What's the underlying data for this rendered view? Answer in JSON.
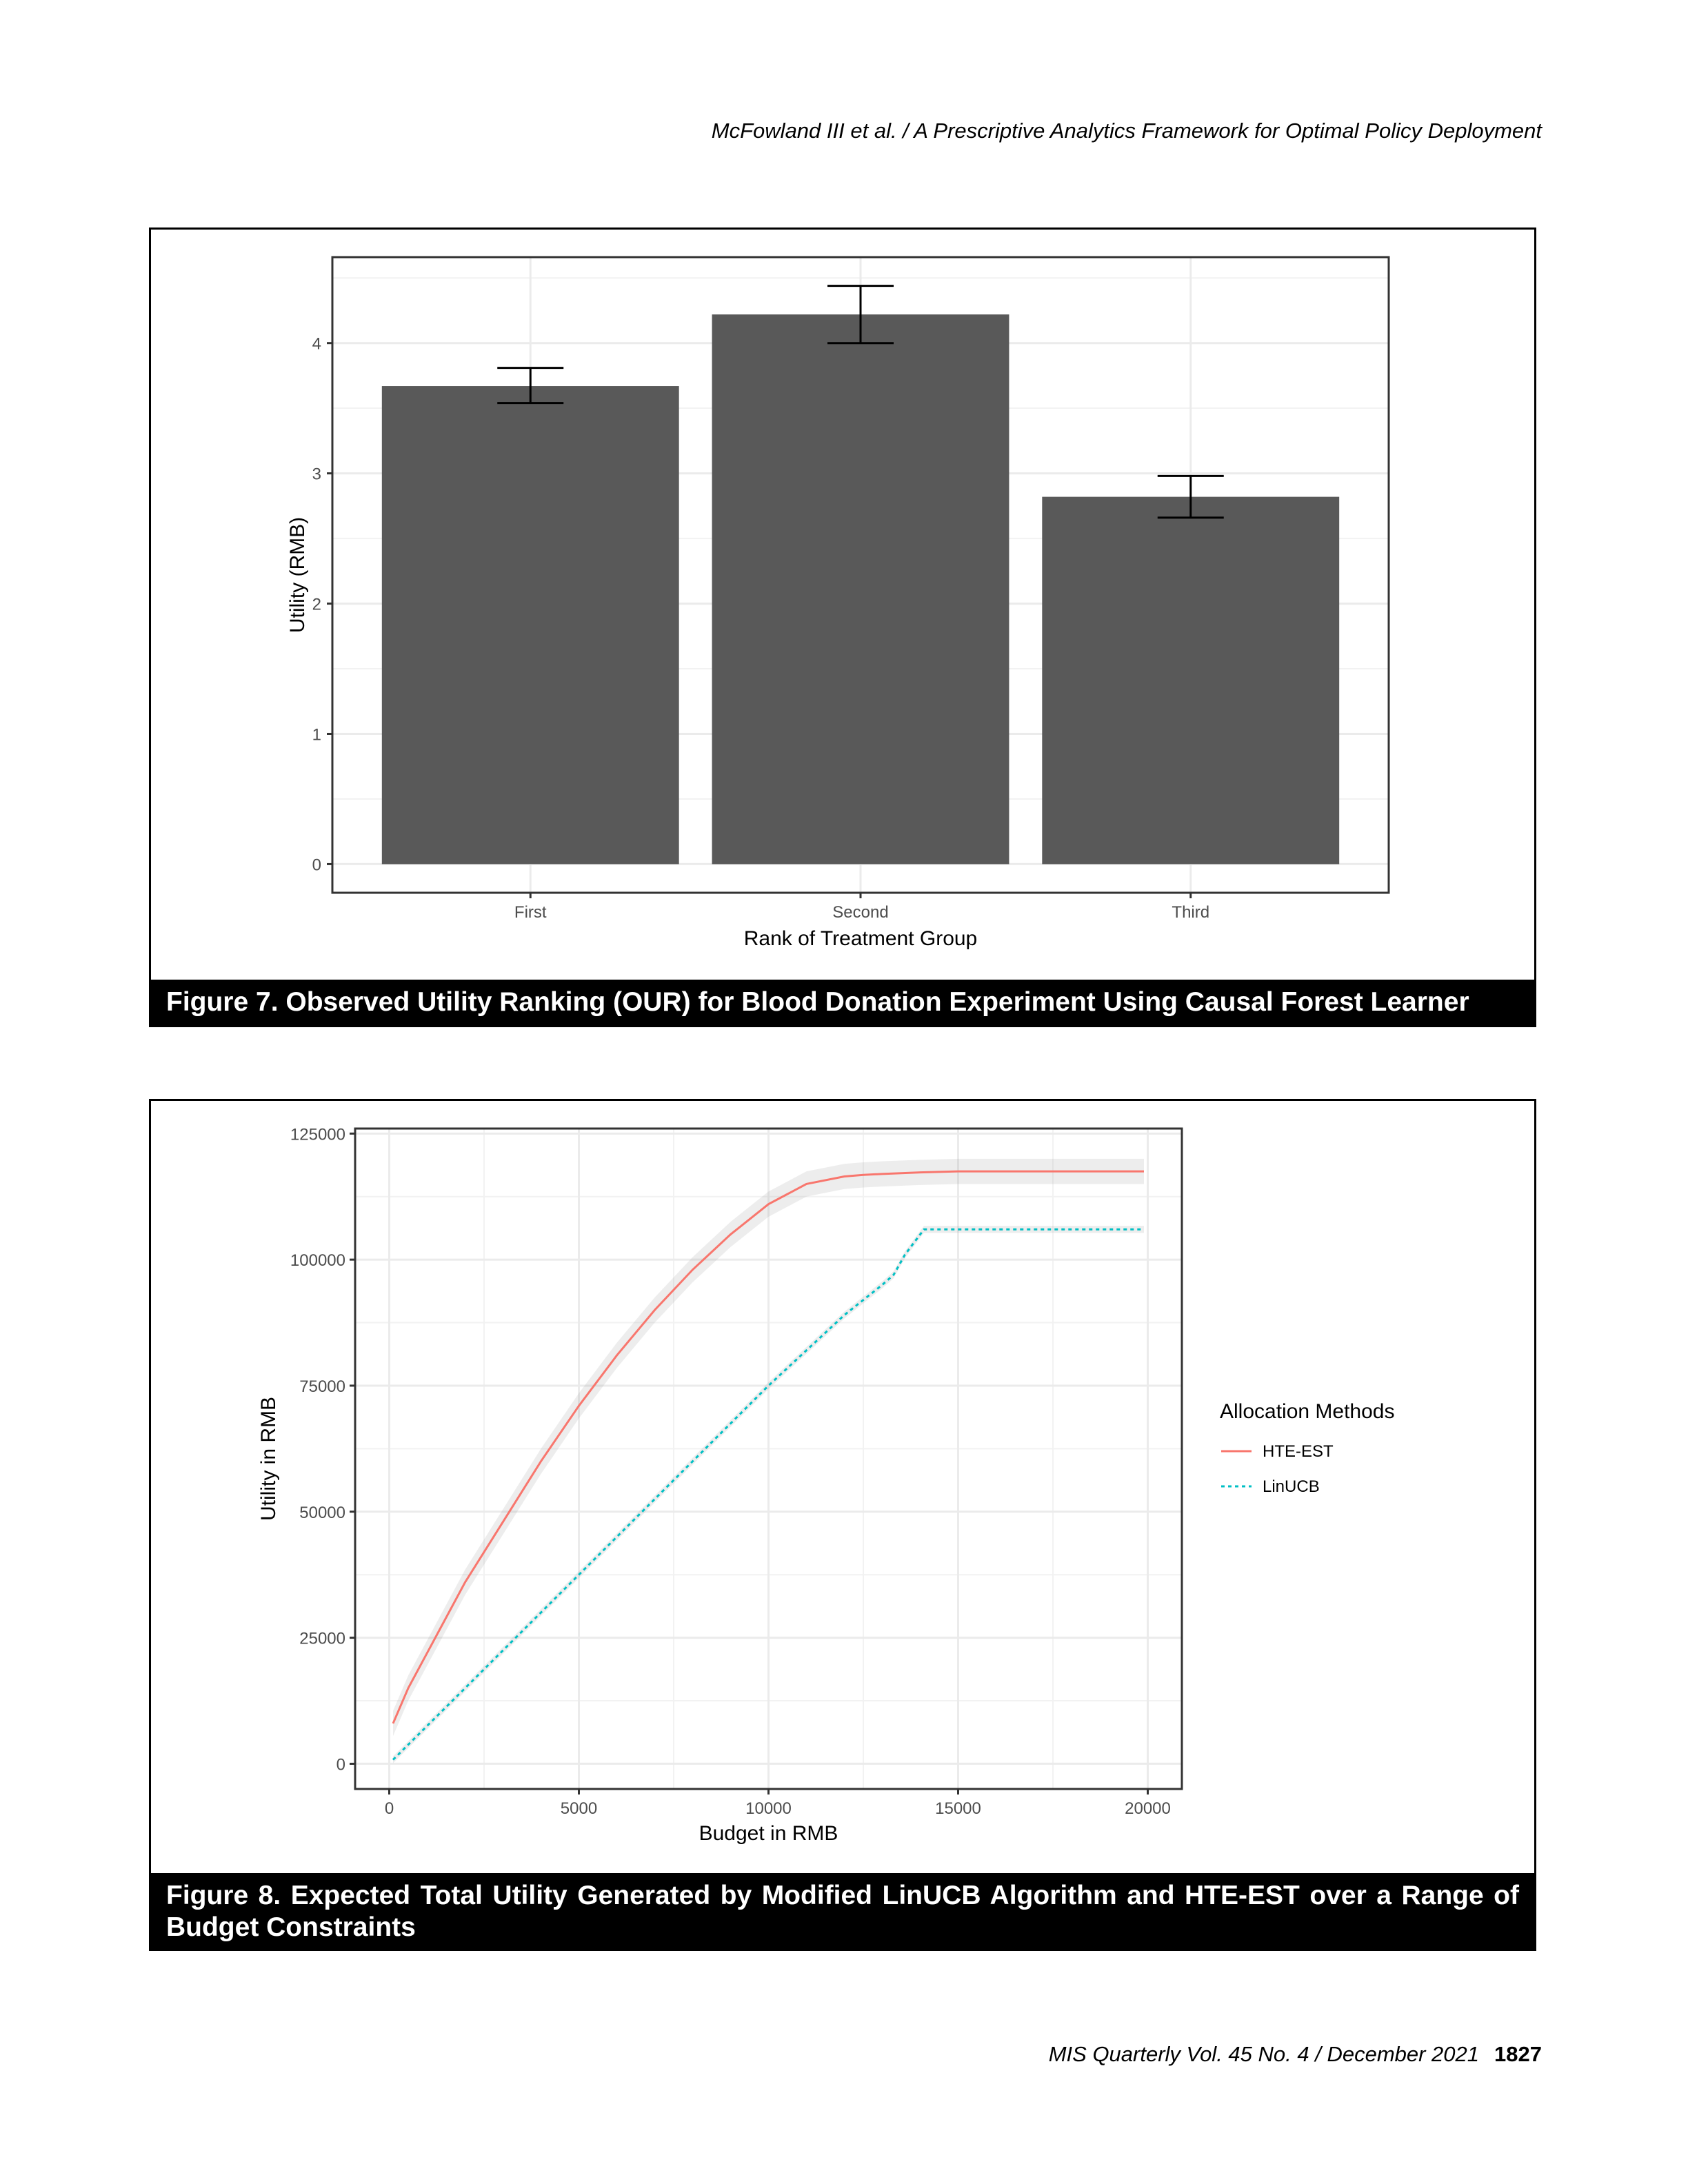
{
  "running_head": "McFowland III et al. / A Prescriptive Analytics Framework for Optimal Policy Deployment",
  "figure7": {
    "caption": "Figure 7. Observed Utility Ranking (OUR) for Blood Donation Experiment Using Causal Forest Learner"
  },
  "figure8": {
    "caption": "Figure 8. Expected Total Utility Generated by Modified LinUCB Algorithm and HTE-EST over a Range of Budget Constraints"
  },
  "footer": {
    "journal": "MIS Quarterly Vol. 45 No. 4 / December 2021",
    "page": "1827"
  },
  "chart_data": [
    {
      "type": "bar",
      "xlabel": "Rank of Treatment Group",
      "ylabel": "Utility (RMB)",
      "categories": [
        "First",
        "Second",
        "Third"
      ],
      "values": [
        3.67,
        4.22,
        2.82
      ],
      "error_low": [
        3.54,
        4.0,
        2.66
      ],
      "error_high": [
        3.81,
        4.44,
        2.98
      ],
      "ylim": [
        -0.22,
        4.66
      ],
      "yticks": [
        0,
        1,
        2,
        3,
        4
      ],
      "grid": true,
      "bar_color": "#595959"
    },
    {
      "type": "line",
      "xlabel": "Budget in RMB",
      "ylabel": "Utility in RMB",
      "xlim": [
        -900,
        20900
      ],
      "ylim": [
        -5000,
        126000
      ],
      "xticks": [
        0,
        5000,
        10000,
        15000,
        20000
      ],
      "yticks": [
        0,
        25000,
        50000,
        75000,
        100000,
        125000
      ],
      "grid": true,
      "legend": {
        "title": "Allocation Methods",
        "position": "right"
      },
      "series": [
        {
          "name": "HTE-EST",
          "color": "#F8766D",
          "dash": "solid",
          "x": [
            100,
            500,
            1000,
            2000,
            3000,
            4000,
            5000,
            6000,
            7000,
            8000,
            9000,
            10000,
            11000,
            12000,
            12500,
            13000,
            14000,
            15000,
            17000,
            19900
          ],
          "y": [
            8000,
            15000,
            22000,
            36000,
            48000,
            60000,
            71000,
            81000,
            90000,
            98000,
            105000,
            111000,
            115000,
            116500,
            116800,
            117000,
            117300,
            117500,
            117500,
            117500
          ],
          "band_half_width": 2500
        },
        {
          "name": "LinUCB",
          "color": "#00BFC4",
          "dash": "dotted",
          "x": [
            100,
            2000,
            4000,
            6000,
            8000,
            10000,
            12000,
            13000,
            13300,
            13600,
            14100,
            19900
          ],
          "y": [
            800,
            15000,
            30000,
            45000,
            60000,
            75000,
            89000,
            95000,
            97000,
            101000,
            106000,
            106000
          ],
          "band_half_width": 700
        }
      ]
    }
  ]
}
